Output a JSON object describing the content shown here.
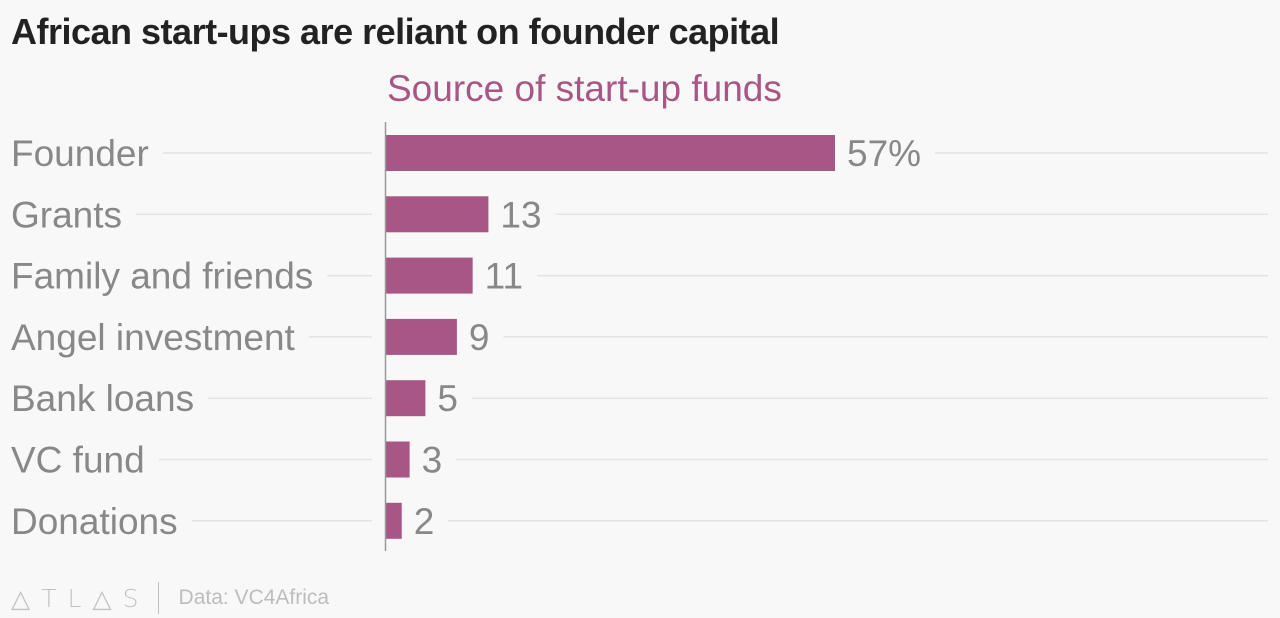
{
  "title": "African start-ups are reliant on founder capital",
  "source": "Data: VC4Africa",
  "logo_text": "ATLAS",
  "colors": {
    "bar": "#a85686",
    "subtitle": "#a85686",
    "label": "#888888",
    "grid": "#e3e3e3",
    "axis": "#999999"
  },
  "chart_data": {
    "type": "bar",
    "orientation": "horizontal",
    "title": "African start-ups are reliant on founder capital",
    "subtitle": "Source of start-up funds",
    "categories": [
      "Founder",
      "Grants",
      "Family and friends",
      "Angel investment",
      "Bank loans",
      "VC fund",
      "Donations"
    ],
    "values": [
      57,
      13,
      11,
      9,
      5,
      3,
      2
    ],
    "value_labels": [
      "57%",
      "13",
      "11",
      "9",
      "5",
      "3",
      "2"
    ],
    "unit": "%",
    "xlim": [
      0,
      100
    ],
    "grid": true,
    "legend": "none"
  }
}
